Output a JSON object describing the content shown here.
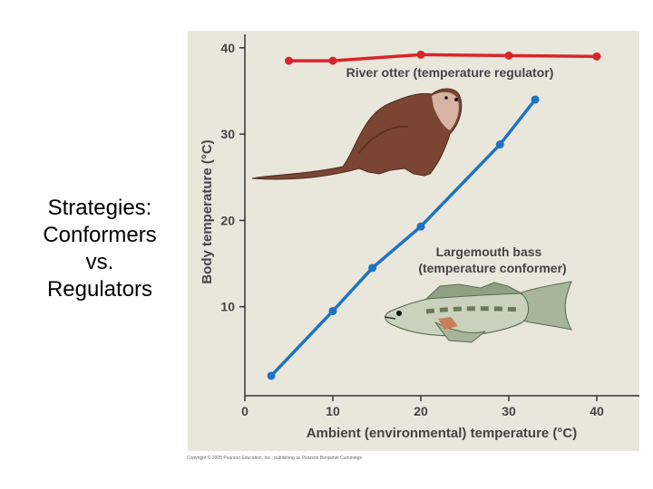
{
  "slide": {
    "title_lines": [
      "Strategies:",
      "Conformers",
      "vs.",
      "Regulators"
    ]
  },
  "credit": "Copyright © 2005 Pearson Education, Inc., publishing as Pearson Benjamin Cummings",
  "colors": {
    "panel_bg": "#e9e6dc",
    "regulator_series": "#d9252a",
    "conformer_series": "#1e73c2",
    "axis": "#333333"
  },
  "images": {
    "otter": "river-otter-illustration",
    "bass": "largemouth-bass-illustration"
  },
  "chart_data": {
    "type": "line",
    "title": "",
    "xlabel": "Ambient (environmental) temperature (°C)",
    "ylabel": "Body temperature (°C)",
    "xlim": [
      0,
      45
    ],
    "ylim": [
      0,
      42
    ],
    "x_ticks": [
      "0",
      "10",
      "20",
      "30",
      "40"
    ],
    "y_ticks": [
      "10",
      "20",
      "30",
      "40"
    ],
    "grid": false,
    "series": [
      {
        "name": "River otter (temperature regulator)",
        "color": "#d9252a",
        "points": [
          [
            5,
            38.5
          ],
          [
            10,
            38.5
          ],
          [
            20,
            39.2
          ],
          [
            30,
            39.1
          ],
          [
            40,
            39
          ]
        ]
      },
      {
        "name": "Largemouth bass (temperature conformer)",
        "label_lines": [
          "Largemouth bass",
          "(temperature conformer)"
        ],
        "color": "#1e73c2",
        "points": [
          [
            3,
            2
          ],
          [
            10,
            9.5
          ],
          [
            14.5,
            14.5
          ],
          [
            20,
            19.3
          ],
          [
            29,
            28.8
          ],
          [
            33,
            34
          ]
        ]
      }
    ]
  }
}
